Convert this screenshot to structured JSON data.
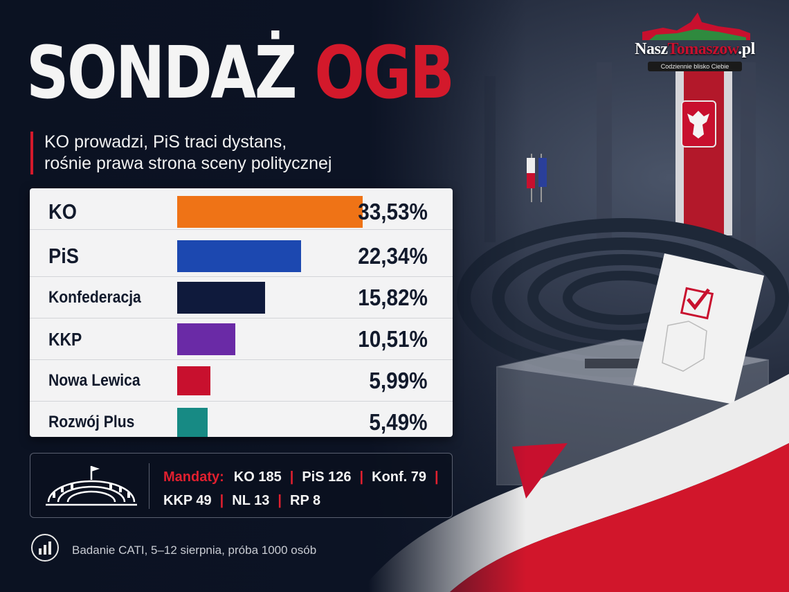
{
  "title": {
    "main": "SONDAŻ",
    "accent": "OGB"
  },
  "subtitle": [
    "KO prowadzi, PiS traci dystans,",
    "rośnie prawa strona sceny politycznej"
  ],
  "logo": {
    "name_part1": "Nasz",
    "name_part2": "Tomaszow",
    "name_part3": ".pl",
    "tagline": "Codziennie blisko Ciebie"
  },
  "chart_data": {
    "type": "bar",
    "orientation": "horizontal",
    "categories": [
      "KO",
      "PiS",
      "Konfederacja",
      "KKP",
      "Nowa Lewica",
      "Rozwój Plus"
    ],
    "values": [
      33.53,
      22.34,
      15.82,
      10.51,
      5.99,
      5.49
    ],
    "value_labels": [
      "33,53%",
      "22,34%",
      "15,82%",
      "10,51%",
      "5,99%",
      "5,49%"
    ],
    "colors": [
      "#ef7316",
      "#1c48b0",
      "#0f1a3c",
      "#6a2aa6",
      "#c8102e",
      "#178a84"
    ],
    "xlim": [
      0,
      35
    ]
  },
  "seats": {
    "label": "Mandaty:",
    "line1": [
      "KO 185",
      "PiS 126",
      "Konf. 79"
    ],
    "line2": [
      "KKP 49",
      "NL 13",
      "RP 8"
    ],
    "separator": "|"
  },
  "source": {
    "text": "Badanie CATI, 5–12 sierpnia, próba 1000 osób",
    "icon": "bar-chart-icon"
  },
  "colors": {
    "accent_red": "#d3192b",
    "background": "#0c1424",
    "panel": "#f3f3f4"
  }
}
